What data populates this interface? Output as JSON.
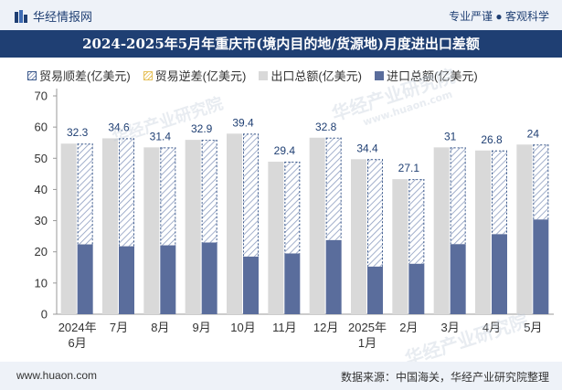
{
  "header": {
    "brand": "华经情报网",
    "tags": "专业严谨 ● 客观科学"
  },
  "title": "2024-2025年5月年重庆市(境内目的地/货源地)月度进出口差额",
  "legend": {
    "surplus": "贸易顺差(亿美元)",
    "deficit": "贸易逆差(亿美元)",
    "export": "出口总额(亿美元)",
    "import": "进口总额(亿美元)"
  },
  "footer": {
    "url": "www.huaon.com",
    "source": "数据来源：中国海关，华经产业研究院整理"
  },
  "watermarks": [
    "华经产业研究院",
    "www.huaon.com",
    "华经产业研究院",
    "华经产业研究院"
  ],
  "colors": {
    "export": "#d9d9d9",
    "import": "#5a6d9c",
    "surplus_hatch": "#7d8fb4",
    "surplus_border": "#3c5a8c",
    "header_bg": "#eef2f8",
    "title_bg": "#1f3f73"
  },
  "chart_data": {
    "type": "bar",
    "categories": [
      [
        "2024年",
        "6月"
      ],
      [
        "7月"
      ],
      [
        "8月"
      ],
      [
        "9月"
      ],
      [
        "10月"
      ],
      [
        "11月"
      ],
      [
        "12月"
      ],
      [
        "2025年",
        "1月"
      ],
      [
        "2月"
      ],
      [
        "3月"
      ],
      [
        "4月"
      ],
      [
        "5月"
      ]
    ],
    "series": [
      {
        "name": "出口总额(亿美元)",
        "values": [
          54.7,
          56.4,
          53.5,
          55.9,
          57.9,
          48.9,
          56.6,
          49.7,
          43.3,
          53.5,
          52.5,
          54.4
        ]
      },
      {
        "name": "进口总额(亿美元)",
        "values": [
          22.4,
          21.8,
          22.1,
          23.0,
          18.5,
          19.5,
          23.8,
          15.3,
          16.2,
          22.5,
          25.7,
          30.4
        ]
      },
      {
        "name": "贸易顺差(亿美元)",
        "values": [
          32.3,
          34.6,
          31.4,
          32.9,
          39.4,
          29.4,
          32.8,
          34.4,
          27.1,
          31,
          26.8,
          24
        ]
      },
      {
        "name": "贸易逆差(亿美元)",
        "values": [
          0,
          0,
          0,
          0,
          0,
          0,
          0,
          0,
          0,
          0,
          0,
          0
        ]
      }
    ],
    "ylim": [
      0,
      70
    ],
    "yticks": [
      0,
      10,
      20,
      30,
      40,
      50,
      60,
      70
    ],
    "grid": false,
    "legend_position": "top"
  }
}
